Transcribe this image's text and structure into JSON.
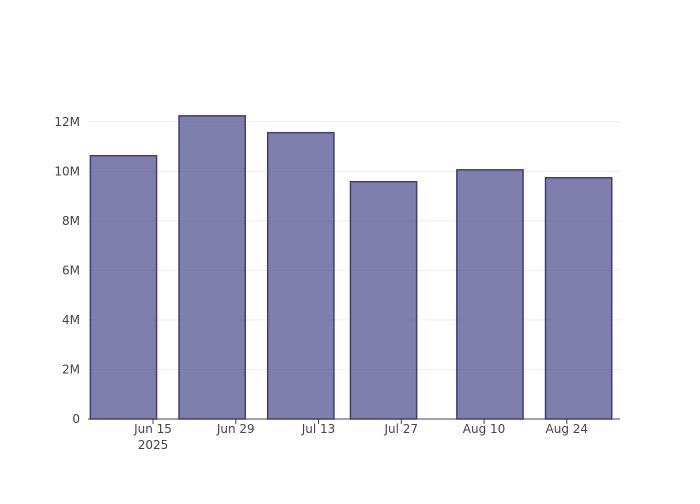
{
  "chart_data": {
    "type": "bar",
    "x": [
      "2025-06-10",
      "2025-06-25",
      "2025-07-10",
      "2025-07-24",
      "2025-08-11",
      "2025-08-26"
    ],
    "values": [
      10630000,
      12240000,
      11560000,
      9580000,
      10060000,
      9740000
    ],
    "color": "#555391",
    "line_color": "#3f3d7a",
    "xlim": [
      "2025-06-04",
      "2025-09-02"
    ],
    "xticks": [
      {
        "value": "2025-06-15",
        "label": "Jun 15\n2025"
      },
      {
        "value": "2025-06-29",
        "label": "Jun 29"
      },
      {
        "value": "2025-07-13",
        "label": "Jul 13"
      },
      {
        "value": "2025-07-27",
        "label": "Jul 27"
      },
      {
        "value": "2025-08-10",
        "label": "Aug 10"
      },
      {
        "value": "2025-08-24",
        "label": "Aug 24"
      }
    ],
    "ylim": [
      0,
      12880000
    ],
    "yticks": [
      0,
      {
        "value": 2000000,
        "label": "2M"
      },
      {
        "value": 4000000,
        "label": "4M"
      },
      {
        "value": 6000000,
        "label": "6M"
      },
      {
        "value": 8000000,
        "label": "8M"
      },
      {
        "value": 10000000,
        "label": "10M"
      },
      {
        "value": 12000000,
        "label": "12M"
      }
    ],
    "grid": true
  }
}
